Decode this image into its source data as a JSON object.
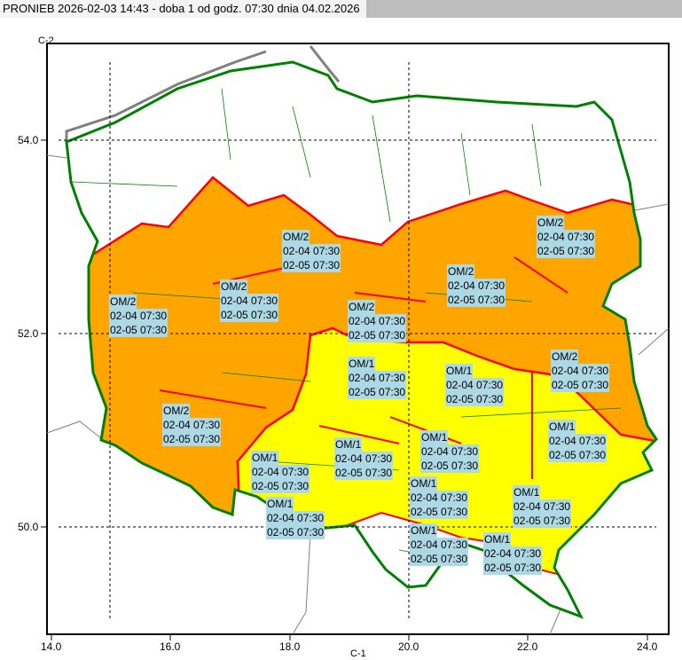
{
  "window": {
    "title": "PRONIEB 2026-02-03 14:43 - doba 1 od godz. 07:30 dnia 04.02.2026"
  },
  "map": {
    "corner_label": "C-2",
    "bottom_label": "C-1",
    "x_ticks": [
      "14.0",
      "16.0",
      "18.0",
      "20.0",
      "22.0",
      "24.0"
    ],
    "y_ticks": [
      "54.0",
      "52.0",
      "50.0"
    ],
    "colors": {
      "level_2": "#ffa500",
      "level_1": "#ffff00",
      "none": "#ffffff",
      "warning_border": "#ff0000",
      "country_border": "#008000",
      "label_bg": "#add8e6"
    },
    "labels": [
      {
        "code": "OM/2",
        "from": "02-04 07:30",
        "to": "02-05 07:30"
      },
      {
        "code": "OM/2",
        "from": "02-04 07:30",
        "to": "02-05 07:30"
      },
      {
        "code": "OM/2",
        "from": "02-04 07:30",
        "to": "02-05 07:30"
      },
      {
        "code": "OM/2",
        "from": "02-04 07:30",
        "to": "02-05 07:30"
      },
      {
        "code": "OM/2",
        "from": "02-04 07:30",
        "to": "02-05 07:30"
      },
      {
        "code": "OM/2",
        "from": "02-04 07:30",
        "to": "02-05 07:30"
      },
      {
        "code": "OM/2",
        "from": "02-04 07:30",
        "to": "02-05 07:30"
      },
      {
        "code": "OM/1",
        "from": "02-04 07:30",
        "to": "02-05 07:30"
      },
      {
        "code": "OM/1",
        "from": "02-04 07:30",
        "to": "02-05 07:30"
      },
      {
        "code": "OM/2",
        "from": "02-04 07:30",
        "to": "02-05 07:30"
      },
      {
        "code": "OM/1",
        "from": "02-04 07:30",
        "to": "02-05 07:30"
      },
      {
        "code": "OM/1",
        "from": "02-04 07:30",
        "to": "02-05 07:30"
      },
      {
        "code": "OM/1",
        "from": "02-04 07:30",
        "to": "02-05 07:30"
      },
      {
        "code": "OM/1",
        "from": "02-04 07:30",
        "to": "02-05 07:30"
      },
      {
        "code": "OM/1",
        "from": "02-04 07:30",
        "to": "02-05 07:30"
      },
      {
        "code": "OM/1",
        "from": "02-04 07:30",
        "to": "02-05 07:30"
      },
      {
        "code": "OM/1",
        "from": "02-04 07:30",
        "to": "02-05 07:30"
      },
      {
        "code": "OM/1",
        "from": "02-04 07:30",
        "to": "02-05 07:30"
      },
      {
        "code": "OM/1",
        "from": "02-04 07:30",
        "to": "02-05 07:30"
      }
    ]
  }
}
